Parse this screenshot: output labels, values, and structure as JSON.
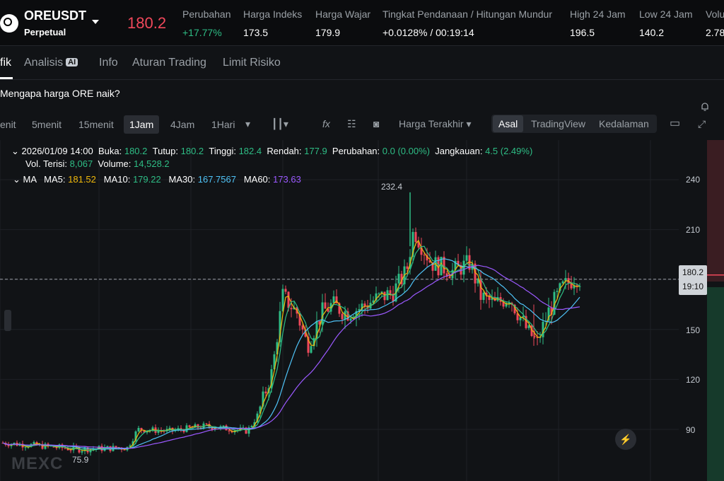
{
  "header": {
    "symbol": "OREUSDT",
    "type": "Perpetual",
    "price": "180.2",
    "stats": [
      {
        "label": "Perubahan",
        "value": "+17.77%",
        "green": true
      },
      {
        "label": "Harga Indeks",
        "value": "173.5"
      },
      {
        "label": "Harga Wajar",
        "value": "179.9"
      },
      {
        "label": "Tingkat Pendanaan / Hitungan Mundur",
        "value": "+0.0128% / 00:19:14"
      },
      {
        "label": "High 24 Jam",
        "value": "196.5"
      },
      {
        "label": "Low 24 Jam",
        "value": "140.2"
      },
      {
        "label": "Volu",
        "value": "2.78"
      }
    ]
  },
  "tabs": [
    "fik",
    "Analisis",
    "Info",
    "Aturan Trading",
    "Limit Risiko"
  ],
  "ai_badge": "AI",
  "question": "Mengapa harga ORE naik?",
  "timeframes": [
    "enit",
    "5menit",
    "15menit",
    "1Jam",
    "4Jam",
    "1Hari"
  ],
  "toolbar": {
    "price_type": "Harga Terakhir",
    "views": [
      "Asal",
      "TradingView",
      "Kedalaman"
    ]
  },
  "candle_info": {
    "date": "2026/01/09 14:00",
    "open_label": "Buka:",
    "open": "180.2",
    "close_label": "Tutup:",
    "close": "180.2",
    "high_label": "Tinggi:",
    "high": "182.4",
    "low_label": "Rendah:",
    "low": "177.9",
    "change_label": "Perubahan:",
    "change": "0.0 (0.00%)",
    "range_label": "Jangkauan:",
    "range": "4.5 (2.49%)",
    "oi_label": "Vol. Terisi:",
    "oi": "8,067",
    "vol_label": "Volume:",
    "vol": "14,528.2"
  },
  "ma": {
    "title": "MA",
    "ma5_label": "MA5:",
    "ma5": "181.52",
    "ma10_label": "MA10:",
    "ma10": "179.22",
    "ma30_label": "MA30:",
    "ma30": "167.7567",
    "ma60_label": "MA60:",
    "ma60": "173.63"
  },
  "price_tag": {
    "price": "180.2",
    "countdown": "19:10"
  },
  "y_ticks": [
    "240",
    "210",
    "150",
    "120",
    "90"
  ],
  "high_label": "232.4",
  "low_label": "75.9",
  "watermark": "MEXC",
  "colors": {
    "up": "#2ebd85",
    "down": "#f0485b",
    "ma5": "#f0b90b",
    "ma10": "#2ebd85",
    "ma30": "#4fc3f7",
    "ma60": "#9b59ff"
  }
}
